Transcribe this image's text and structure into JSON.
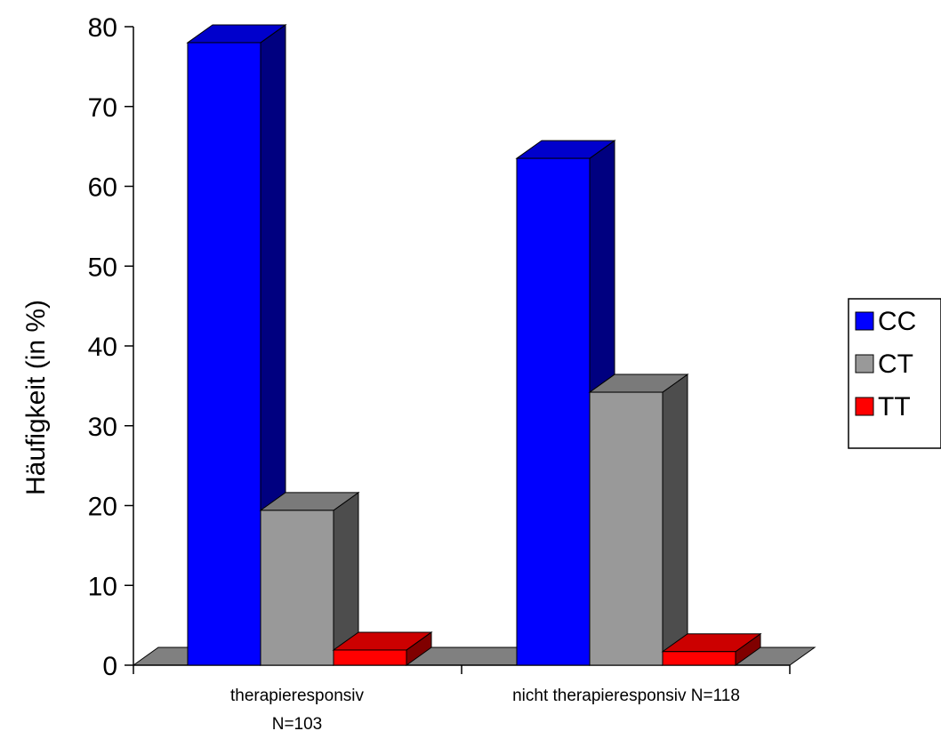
{
  "chart_data": {
    "type": "bar",
    "title": "",
    "xlabel": "",
    "ylabel": "Häufigkeit (in %)",
    "ylim": [
      0,
      80
    ],
    "yticks": [
      "0",
      "10",
      "20",
      "30",
      "40",
      "50",
      "60",
      "70",
      "80"
    ],
    "categories": [
      {
        "line1": "therapieresponsiv",
        "line2": "N=103"
      },
      {
        "line1": "nicht therapieresponsiv N=118",
        "line2": ""
      }
    ],
    "series": [
      {
        "name": "CC",
        "values": [
          78,
          63.5
        ],
        "color": "#0000ff",
        "side_color": "#000080",
        "top_color": "#0000cc"
      },
      {
        "name": "CT",
        "values": [
          19.4,
          34.2
        ],
        "color": "#999999",
        "side_color": "#4d4d4d",
        "top_color": "#7a7a7a"
      },
      {
        "name": "TT",
        "values": [
          1.9,
          1.7
        ],
        "color": "#ff0000",
        "side_color": "#800000",
        "top_color": "#cc0000"
      }
    ],
    "floor_color": "#808080",
    "legend_position": "right",
    "grid": false,
    "style": "3d"
  }
}
